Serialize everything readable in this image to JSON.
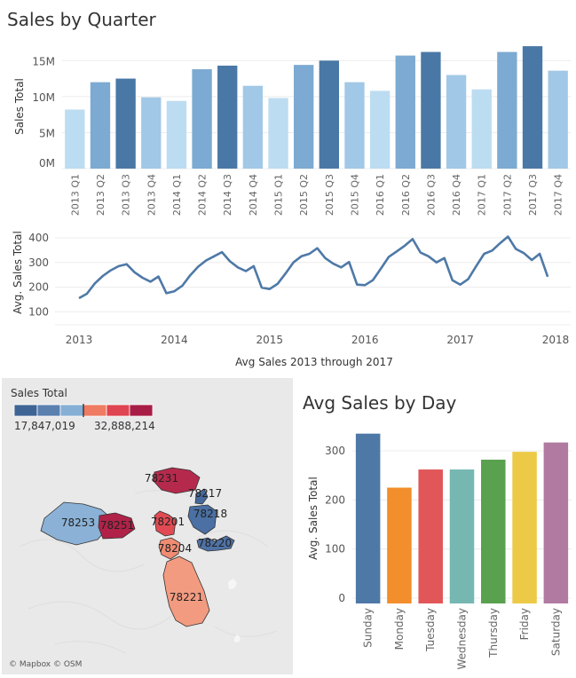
{
  "sales_by_quarter": {
    "title": "Sales by Quarter"
  },
  "avg_by_day": {
    "title": "Avg Sales by Day"
  },
  "map": {
    "legend_title": "Sales Total",
    "legend_min": "17,847,019",
    "legend_max": "32,888,214",
    "legend_colors": [
      "#3d6494",
      "#5a80b0",
      "#86afd5",
      "#ee7b62",
      "#df4550",
      "#a81d46"
    ],
    "attribution": "© Mapbox © OSM",
    "zip_labels": [
      "78231",
      "78217",
      "78218",
      "78253",
      "78251",
      "78201",
      "78204",
      "78220",
      "78221"
    ],
    "zip_colors": {
      "78231": "#b52a4c",
      "78217": "#45699c",
      "78218": "#4a70a4",
      "78253": "#8bb1d6",
      "78251": "#b02248",
      "78201": "#e14a52",
      "78204": "#f08c72",
      "78220": "#4e72a5",
      "78221": "#f39b80"
    }
  },
  "chart_data": [
    {
      "type": "bar",
      "title": "Sales by Quarter",
      "ylabel": "Sales Total",
      "ylim": [
        0,
        17500000
      ],
      "yticks": [
        "0M",
        "5M",
        "10M",
        "15M"
      ],
      "ytick_values": [
        0,
        5000000,
        10000000,
        15000000
      ],
      "categories": [
        "2013 Q1",
        "2013 Q2",
        "2013 Q3",
        "2013 Q4",
        "2014 Q1",
        "2014 Q2",
        "2014 Q3",
        "2014 Q4",
        "2015 Q1",
        "2015 Q2",
        "2015 Q3",
        "2015 Q4",
        "2016 Q1",
        "2016 Q2",
        "2016 Q3",
        "2016 Q4",
        "2017 Q1",
        "2017 Q2",
        "2017 Q3",
        "2017 Q4"
      ],
      "values": [
        8200000,
        12000000,
        12500000,
        9900000,
        9400000,
        13800000,
        14300000,
        11500000,
        9800000,
        14400000,
        15000000,
        12000000,
        10800000,
        15700000,
        16200000,
        13000000,
        11000000,
        16200000,
        17000000,
        13600000
      ],
      "colors": [
        "#bcdcf1",
        "#7caad2",
        "#4a78a6",
        "#a1c8e6",
        "#bcdcf1",
        "#7caad2",
        "#4a78a6",
        "#a1c8e6",
        "#bcdcf1",
        "#7caad2",
        "#4a78a6",
        "#a1c8e6",
        "#bcdcf1",
        "#7caad2",
        "#4a78a6",
        "#a1c8e6",
        "#bcdcf1",
        "#7caad2",
        "#4a78a6",
        "#a1c8e6"
      ]
    },
    {
      "type": "line",
      "ylabel": "Avg. Sales Total",
      "xlabel": "Avg Sales 2013 through 2017",
      "ylim": [
        0,
        420
      ],
      "yticks": [
        100,
        200,
        300,
        400
      ],
      "xticks": [
        "2013",
        "2014",
        "2015",
        "2016",
        "2017",
        "2018"
      ],
      "color": "#4e79a7",
      "x": [
        "2013-01",
        "2013-02",
        "2013-03",
        "2013-04",
        "2013-05",
        "2013-06",
        "2013-07",
        "2013-08",
        "2013-09",
        "2013-10",
        "2013-11",
        "2013-12",
        "2014-01",
        "2014-02",
        "2014-03",
        "2014-04",
        "2014-05",
        "2014-06",
        "2014-07",
        "2014-08",
        "2014-09",
        "2014-10",
        "2014-11",
        "2014-12",
        "2015-01",
        "2015-02",
        "2015-03",
        "2015-04",
        "2015-05",
        "2015-06",
        "2015-07",
        "2015-08",
        "2015-09",
        "2015-10",
        "2015-11",
        "2015-12",
        "2016-01",
        "2016-02",
        "2016-03",
        "2016-04",
        "2016-05",
        "2016-06",
        "2016-07",
        "2016-08",
        "2016-09",
        "2016-10",
        "2016-11",
        "2016-12",
        "2017-01",
        "2017-02",
        "2017-03",
        "2017-04",
        "2017-05",
        "2017-06",
        "2017-07",
        "2017-08",
        "2017-09",
        "2017-10",
        "2017-11",
        "2017-12"
      ],
      "values": [
        155,
        173,
        215,
        245,
        268,
        285,
        293,
        260,
        238,
        222,
        243,
        175,
        183,
        205,
        248,
        283,
        308,
        325,
        342,
        305,
        280,
        265,
        285,
        198,
        192,
        213,
        255,
        300,
        325,
        335,
        358,
        318,
        295,
        280,
        302,
        210,
        208,
        228,
        275,
        323,
        345,
        368,
        395,
        340,
        325,
        300,
        318,
        228,
        210,
        232,
        285,
        335,
        348,
        378,
        405,
        355,
        338,
        310,
        335,
        242
      ]
    },
    {
      "type": "bar",
      "title": "Avg Sales by Day",
      "ylabel": "Avg. Sales Total",
      "ylim": [
        0,
        350
      ],
      "yticks": [
        0,
        100,
        200,
        300
      ],
      "categories": [
        "Sunday",
        "Monday",
        "Tuesday",
        "Wednesday",
        "Thursday",
        "Friday",
        "Saturday"
      ],
      "values": [
        335,
        225,
        262,
        262,
        282,
        298,
        317
      ],
      "colors": [
        "#4e79a7",
        "#f28e2b",
        "#e15759",
        "#76b7b2",
        "#59a14f",
        "#edc948",
        "#b07aa1"
      ]
    }
  ]
}
